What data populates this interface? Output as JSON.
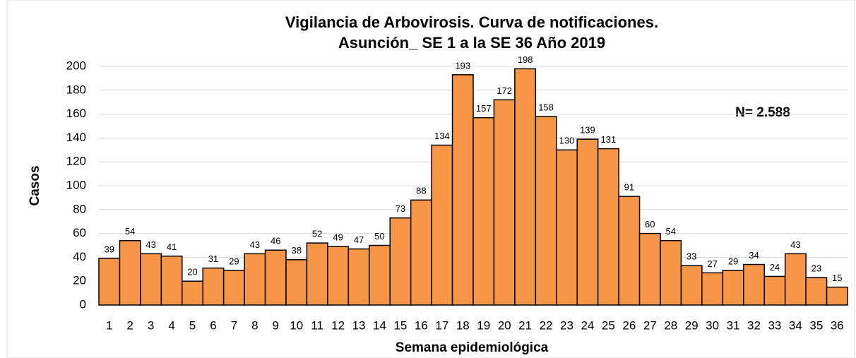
{
  "chart_data": {
    "type": "bar",
    "title": "Vigilancia de Arbovirosis. Curva de notificaciones.",
    "subtitle": "Asunción_ SE 1 a la SE 36 Año 2019",
    "annotation": "N= 2.588",
    "xlabel": "Semana epidemiológica",
    "ylabel": "Casos",
    "categories": [
      "1",
      "2",
      "3",
      "4",
      "5",
      "6",
      "7",
      "8",
      "9",
      "10",
      "11",
      "12",
      "13",
      "14",
      "15",
      "16",
      "17",
      "18",
      "19",
      "20",
      "21",
      "22",
      "23",
      "24",
      "25",
      "26",
      "27",
      "28",
      "29",
      "30",
      "31",
      "32",
      "33",
      "34",
      "35",
      "36"
    ],
    "values": [
      39,
      54,
      43,
      41,
      20,
      31,
      29,
      43,
      46,
      38,
      52,
      49,
      47,
      50,
      73,
      88,
      134,
      193,
      157,
      172,
      198,
      158,
      130,
      139,
      131,
      91,
      60,
      54,
      33,
      27,
      29,
      34,
      24,
      43,
      23,
      15
    ],
    "color": "#f79646",
    "ylim": [
      0,
      200
    ],
    "yticks": [
      0,
      20,
      40,
      60,
      80,
      100,
      120,
      140,
      160,
      180,
      200
    ],
    "grid": true
  }
}
